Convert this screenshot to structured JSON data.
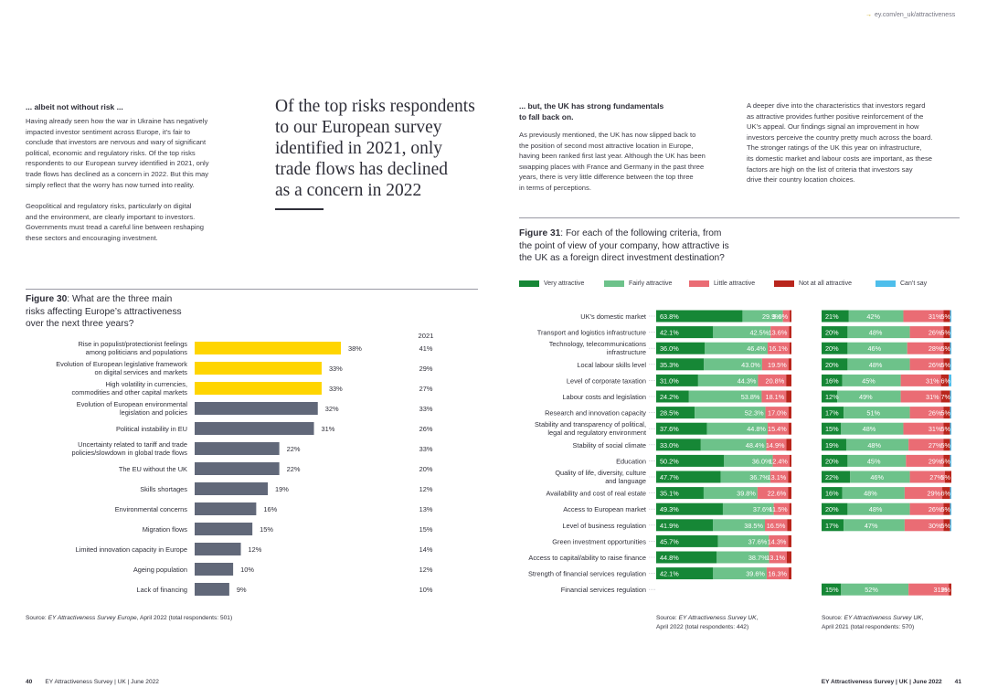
{
  "header": {
    "url": "ey.com/en_uk/attractiveness"
  },
  "colors": {
    "very": "#168736",
    "fairly": "#6dc28a",
    "little": "#ea6c74",
    "not": "#b9251c",
    "cant": "#4ebeeb",
    "yellow": "#ffd500",
    "gray": "#616879"
  },
  "left": {
    "heading": "... albeit not without risk ...",
    "p1": [
      "Having already seen how the war in Ukraine has negatively",
      "impacted investor sentiment across Europe, it’s fair to",
      "conclude that investors are nervous and wary of significant",
      "political, economic and regulatory risks. Of the top risks",
      "respondents to our European survey identified in 2021, only",
      "trade flows has declined as a concern in 2022. But this may",
      "simply reflect that the worry has now turned into reality."
    ],
    "p2": [
      "Geopolitical and regulatory risks, particularly on digital",
      "and the environment, are clearly important to investors.",
      "Governments must tread a careful line between reshaping",
      "these sectors and encouraging investment."
    ]
  },
  "quote": [
    "Of the top risks respondents",
    "to our European survey",
    "identified in 2021, only",
    "trade flows has declined",
    "as a concern in 2022"
  ],
  "mid": {
    "heading": [
      "... but, the UK has strong fundamentals",
      "to fall back on."
    ],
    "p": [
      "As previously mentioned, the UK has now slipped back to",
      "the position of second most attractive location in Europe,",
      "having been ranked first last year. Although the UK has been",
      "swapping places with France and Germany in the past three",
      "years, there is very little difference between the top three",
      "in terms of perceptions."
    ]
  },
  "right": {
    "p": [
      "A deeper dive into the characteristics that investors regard",
      "as attractive provides further positive reinforcement of the",
      "UK’s appeal. Our findings signal an improvement in how",
      "investors perceive the country pretty much across the board.",
      "The stronger ratings of the UK this year on infrastructure,",
      "its domestic market and labour costs are important, as these",
      "factors are high on the list of criteria that investors say",
      "drive their country location choices."
    ]
  },
  "fig30": {
    "label": "Figure 30",
    "title_lines": [
      ": What are the three main",
      "risks affecting Europe’s attractiveness",
      "over the next three years?"
    ],
    "source_italic": "EY Attractiveness Survey Europe",
    "source_rest": ", April 2022 (total respondents: 501)"
  },
  "fig31": {
    "label": "Figure 31",
    "title_lines": [
      ": For each of the following criteria, from",
      "the point of view of your company, how attractive is",
      "the UK as a foreign direct investment destination?"
    ],
    "source2022": {
      "italic": "EY Attractiveness Survey UK",
      "rest1": ",",
      "rest2": "April 2022 (total respondents: 442)"
    },
    "source2021": {
      "italic": "EY Attractiveness Survey UK",
      "rest1": ",",
      "rest2": "April 2021 (total respondents: 570)"
    }
  },
  "legend": [
    "Very attractive",
    "Fairly attractive",
    "Little attractive",
    "Not at all attractive",
    "Can’t say"
  ],
  "footer": {
    "left_page": "40",
    "left_text": "EY Attractiveness Survey | UK | June 2022",
    "right_text": "EY Attractiveness Survey | UK | June 2022",
    "right_page": "41"
  },
  "chart_data": [
    {
      "type": "bar",
      "orientation": "horizontal",
      "title": "What are the three main risks affecting Europe’s attractiveness over the next three years?",
      "categories": [
        "Rise in populist/protectionist feelings|among politicians and populations",
        "Evolution of European legislative framework|on digital services and markets",
        "High volatility in currencies,|commodities and other capital markets",
        "Evolution of European environmental|legislation and policies",
        "Political instability in EU",
        "Uncertainty related to tariff and trade|policies/slowdown in global trade flows",
        "The EU without the UK",
        "Skills shortages",
        "Environmental concerns",
        "Migration flows",
        "Limited innovation capacity in Europe",
        "Ageing population",
        "Lack of financing"
      ],
      "series": [
        {
          "name": "2022",
          "values": [
            38,
            33,
            33,
            32,
            31,
            22,
            22,
            19,
            16,
            15,
            12,
            10,
            9
          ]
        },
        {
          "name": "2021",
          "values": [
            41,
            29,
            27,
            33,
            26,
            33,
            20,
            12,
            13,
            15,
            14,
            12,
            10
          ]
        }
      ],
      "highlighted": [
        0,
        1,
        2
      ],
      "unit": "%",
      "xlim": [
        0,
        40
      ]
    },
    {
      "type": "bar",
      "stacked": true,
      "orientation": "horizontal",
      "title": "UK attractiveness criteria",
      "categories": [
        "UK’s domestic market",
        "Transport and logistics infrastructure",
        "Technology, telecommunications|infrastructure",
        "Local labour skills level",
        "Level of corporate taxation",
        "Labour costs and legislation",
        "Research and innovation capacity",
        "Stability and transparency of political,|legal and regulatory environment",
        "Stability of social climate",
        "Education",
        "Quality of life, diversity, culture|and language",
        "Availability and cost of real estate",
        "Access to European market",
        "Level of business regulation",
        "Green investment opportunities",
        "Access to capital/ability to raise finance",
        "Strength of financial services regulation",
        "Financial services regulation"
      ],
      "panels": [
        {
          "name": "2022",
          "rows": [
            {
              "very": 63.8,
              "fairly": 29.9,
              "little": 5.0,
              "not": 1.3
            },
            {
              "very": 42.1,
              "fairly": 42.5,
              "little": 13.6,
              "not": 1.8
            },
            {
              "very": 36.0,
              "fairly": 46.4,
              "little": 16.1,
              "not": 1.5
            },
            {
              "very": 35.3,
              "fairly": 43.0,
              "little": 19.5,
              "not": 2.2
            },
            {
              "very": 31.0,
              "fairly": 44.3,
              "little": 20.8,
              "not": 3.9
            },
            {
              "very": 24.2,
              "fairly": 53.8,
              "little": 18.1,
              "not": 3.9
            },
            {
              "very": 28.5,
              "fairly": 52.3,
              "little": 17.0,
              "not": 2.2
            },
            {
              "very": 37.6,
              "fairly": 44.8,
              "little": 15.4,
              "not": 2.2
            },
            {
              "very": 33.0,
              "fairly": 48.4,
              "little": 14.9,
              "not": 3.7
            },
            {
              "very": 50.2,
              "fairly": 36.0,
              "little": 12.4,
              "not": 1.4
            },
            {
              "very": 47.7,
              "fairly": 36.7,
              "little": 13.1,
              "not": 2.5
            },
            {
              "very": 35.1,
              "fairly": 39.8,
              "little": 22.6,
              "not": 2.5
            },
            {
              "very": 49.3,
              "fairly": 37.6,
              "little": 11.5,
              "not": 1.6
            },
            {
              "very": 41.9,
              "fairly": 38.5,
              "little": 16.5,
              "not": 3.1
            },
            {
              "very": 45.7,
              "fairly": 37.6,
              "little": 14.3,
              "not": 2.4
            },
            {
              "very": 44.8,
              "fairly": 38.7,
              "little": 13.1,
              "not": 3.4
            },
            {
              "very": 42.1,
              "fairly": 39.6,
              "little": 16.3,
              "not": 2.0
            },
            null
          ]
        },
        {
          "name": "2021",
          "rows": [
            {
              "very": 21,
              "fairly": 42,
              "little": 31,
              "not": 5,
              "cant": 1
            },
            {
              "very": 20,
              "fairly": 48,
              "little": 26,
              "not": 5,
              "cant": 1
            },
            {
              "very": 20,
              "fairly": 46,
              "little": 28,
              "not": 5,
              "cant": 1
            },
            {
              "very": 20,
              "fairly": 48,
              "little": 26,
              "not": 5,
              "cant": 1
            },
            {
              "very": 16,
              "fairly": 45,
              "little": 31,
              "not": 6,
              "cant": 2
            },
            {
              "very": 12,
              "fairly": 49,
              "little": 31,
              "not": 7,
              "cant": 1
            },
            {
              "very": 17,
              "fairly": 51,
              "little": 26,
              "not": 5,
              "cant": 1
            },
            {
              "very": 15,
              "fairly": 48,
              "little": 31,
              "not": 5,
              "cant": 1
            },
            {
              "very": 19,
              "fairly": 48,
              "little": 27,
              "not": 5,
              "cant": 1
            },
            {
              "very": 20,
              "fairly": 45,
              "little": 29,
              "not": 5,
              "cant": 1
            },
            {
              "very": 22,
              "fairly": 46,
              "little": 27,
              "not": 5,
              "cant": 0
            },
            {
              "very": 16,
              "fairly": 48,
              "little": 29,
              "not": 6,
              "cant": 1
            },
            {
              "very": 20,
              "fairly": 48,
              "little": 26,
              "not": 5,
              "cant": 1
            },
            {
              "very": 17,
              "fairly": 47,
              "little": 30,
              "not": 5,
              "cant": 1
            },
            null,
            null,
            null,
            {
              "very": 15,
              "fairly": 52,
              "little": 31,
              "not": 2,
              "cant": 0
            }
          ]
        }
      ],
      "unit": "%",
      "xlim": [
        0,
        100
      ]
    }
  ]
}
